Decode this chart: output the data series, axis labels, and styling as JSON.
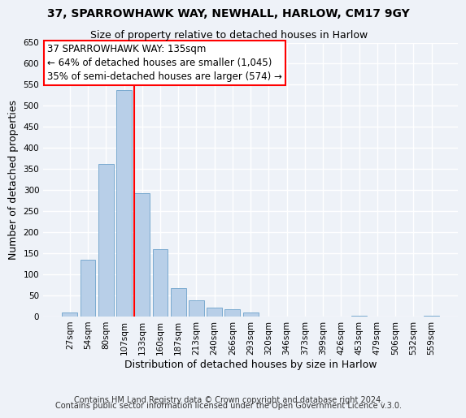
{
  "title": "37, SPARROWHAWK WAY, NEWHALL, HARLOW, CM17 9GY",
  "subtitle": "Size of property relative to detached houses in Harlow",
  "xlabel": "Distribution of detached houses by size in Harlow",
  "ylabel": "Number of detached properties",
  "bar_labels": [
    "27sqm",
    "54sqm",
    "80sqm",
    "107sqm",
    "133sqm",
    "160sqm",
    "187sqm",
    "213sqm",
    "240sqm",
    "266sqm",
    "293sqm",
    "320sqm",
    "346sqm",
    "373sqm",
    "399sqm",
    "426sqm",
    "453sqm",
    "479sqm",
    "506sqm",
    "532sqm",
    "559sqm"
  ],
  "bar_values": [
    10,
    135,
    362,
    537,
    293,
    160,
    67,
    38,
    22,
    17,
    10,
    0,
    0,
    0,
    0,
    0,
    2,
    0,
    0,
    0,
    2
  ],
  "bar_color": "#b8cfe8",
  "bar_edge_color": "#7aaad0",
  "property_line_label": "37 SPARROWHAWK WAY: 135sqm",
  "annotation_line1": "← 64% of detached houses are smaller (1,045)",
  "annotation_line2": "35% of semi-detached houses are larger (574) →",
  "annotation_box_color": "white",
  "annotation_box_edge": "red",
  "vline_color": "red",
  "vline_bar_index": 4,
  "ylim": [
    0,
    650
  ],
  "yticks": [
    0,
    50,
    100,
    150,
    200,
    250,
    300,
    350,
    400,
    450,
    500,
    550,
    600,
    650
  ],
  "footer1": "Contains HM Land Registry data © Crown copyright and database right 2024.",
  "footer2": "Contains public sector information licensed under the Open Government Licence v.3.0.",
  "background_color": "#eef2f8",
  "grid_color": "white",
  "title_fontsize": 10,
  "subtitle_fontsize": 9,
  "axis_label_fontsize": 9,
  "tick_fontsize": 7.5,
  "annotation_fontsize": 8.5,
  "footer_fontsize": 7
}
